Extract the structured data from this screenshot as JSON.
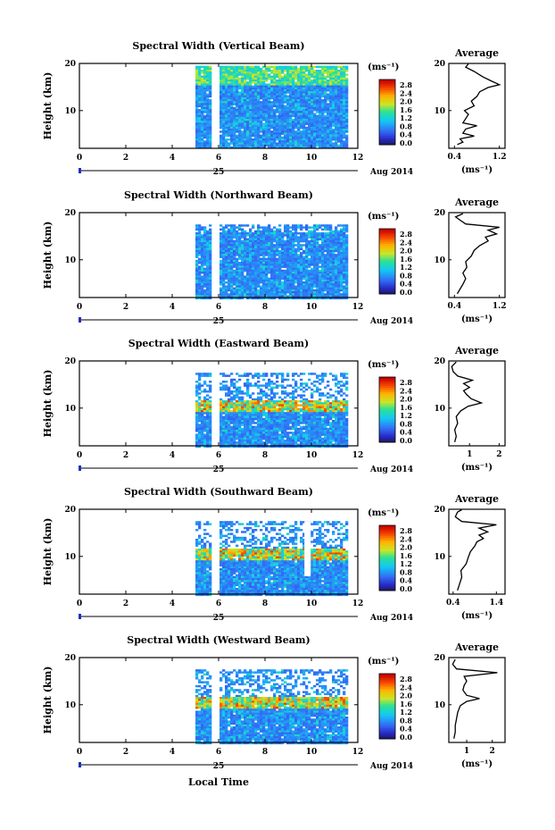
{
  "chart_data": {
    "type": "heatmap",
    "x_ticks": [
      "0",
      "2",
      "4",
      "6",
      "8",
      "10",
      "12"
    ],
    "xlim": [
      0,
      12
    ],
    "date_day": "25",
    "date_label": "Aug 2014",
    "xlabel": "Local Time",
    "ylabel": "Height (km)",
    "y_ticks": [
      "10",
      "20"
    ],
    "ylim": [
      2,
      20
    ],
    "cbar_unit": "(ms⁻¹)",
    "cbar_ticks": [
      "2.8",
      "2.4",
      "2.0",
      "1.6",
      "1.2",
      "0.8",
      "0.4",
      "0.0"
    ],
    "avg_title": "Average",
    "avg_unit": "(ms⁻¹)",
    "data_start": 5.0,
    "data_end": 11.5,
    "gap": [
      5.7,
      6.0
    ],
    "panels": [
      {
        "title": "Spectral Width (Vertical Beam)",
        "avg_ticks": [
          "0.4",
          "1.2"
        ],
        "avg_xlim": [
          0.3,
          1.3
        ],
        "avg_profile": [
          [
            0.45,
            2.8
          ],
          [
            0.55,
            3.3
          ],
          [
            0.5,
            4
          ],
          [
            0.75,
            4.6
          ],
          [
            0.55,
            5.2
          ],
          [
            0.6,
            6.1
          ],
          [
            0.8,
            6.8
          ],
          [
            0.55,
            7.4
          ],
          [
            0.6,
            8.3
          ],
          [
            0.65,
            9.2
          ],
          [
            0.58,
            10
          ],
          [
            0.75,
            11
          ],
          [
            0.7,
            12
          ],
          [
            0.8,
            13
          ],
          [
            0.85,
            14
          ],
          [
            1.0,
            14.9
          ],
          [
            1.2,
            15.5
          ],
          [
            1.05,
            16.3
          ],
          [
            0.9,
            17.2
          ],
          [
            0.75,
            18.3
          ],
          [
            0.6,
            19.2
          ],
          [
            0.65,
            19.9
          ]
        ],
        "notes": []
      },
      {
        "title": "Spectral Width (Northward Beam)",
        "avg_ticks": [
          "0.4",
          "1.2"
        ],
        "avg_xlim": [
          0.3,
          1.3
        ],
        "avg_profile": [
          [
            0.45,
            2.8
          ],
          [
            0.5,
            3.8
          ],
          [
            0.55,
            4.8
          ],
          [
            0.6,
            6
          ],
          [
            0.55,
            7.2
          ],
          [
            0.62,
            8.4
          ],
          [
            0.6,
            9.6
          ],
          [
            0.7,
            10.8
          ],
          [
            0.75,
            12
          ],
          [
            0.85,
            13
          ],
          [
            1.0,
            14
          ],
          [
            0.95,
            14.8
          ],
          [
            1.15,
            15.5
          ],
          [
            1.0,
            16.3
          ],
          [
            1.2,
            16.9
          ],
          [
            0.6,
            17.6
          ],
          [
            0.5,
            18.4
          ],
          [
            0.42,
            19.1
          ],
          [
            0.55,
            19.8
          ]
        ],
        "notes": []
      },
      {
        "title": "Spectral Width (Eastward Beam)",
        "avg_ticks": [
          "1",
          "2"
        ],
        "avg_xlim": [
          0.3,
          2.2
        ],
        "avg_profile": [
          [
            0.5,
            2.8
          ],
          [
            0.55,
            4
          ],
          [
            0.5,
            5.4
          ],
          [
            0.6,
            6.8
          ],
          [
            0.55,
            8.2
          ],
          [
            0.7,
            9.4
          ],
          [
            0.95,
            10.4
          ],
          [
            1.4,
            11.1
          ],
          [
            1.05,
            12
          ],
          [
            0.9,
            12.9
          ],
          [
            0.8,
            13.7
          ],
          [
            1.0,
            14.4
          ],
          [
            0.8,
            15.2
          ],
          [
            1.1,
            15.9
          ],
          [
            0.6,
            16.8
          ],
          [
            0.45,
            17.7
          ],
          [
            0.4,
            18.8
          ],
          [
            0.55,
            19.8
          ]
        ],
        "notes": []
      },
      {
        "title": "Spectral Width (Southward Beam)",
        "avg_ticks": [
          "0.4",
          "1.4"
        ],
        "avg_xlim": [
          0.3,
          1.6
        ],
        "avg_profile": [
          [
            0.5,
            2.8
          ],
          [
            0.55,
            4.2
          ],
          [
            0.6,
            5.6
          ],
          [
            0.58,
            7
          ],
          [
            0.7,
            8.4
          ],
          [
            0.75,
            9.8
          ],
          [
            0.8,
            11
          ],
          [
            0.9,
            12.2
          ],
          [
            0.95,
            13.1
          ],
          [
            1.1,
            13.8
          ],
          [
            1.0,
            14.5
          ],
          [
            1.2,
            15.2
          ],
          [
            1.0,
            16
          ],
          [
            1.4,
            16.7
          ],
          [
            0.6,
            17.4
          ],
          [
            0.45,
            18.4
          ],
          [
            0.5,
            19.4
          ],
          [
            0.6,
            19.9
          ]
        ],
        "notes": []
      },
      {
        "title": "Spectral Width (Westward Beam)",
        "avg_ticks": [
          "1",
          "2"
        ],
        "avg_xlim": [
          0.3,
          2.5
        ],
        "avg_profile": [
          [
            0.5,
            2.8
          ],
          [
            0.55,
            4.2
          ],
          [
            0.55,
            5.6
          ],
          [
            0.6,
            7
          ],
          [
            0.65,
            8.4
          ],
          [
            0.75,
            9.8
          ],
          [
            1.0,
            10.7
          ],
          [
            1.5,
            11.3
          ],
          [
            1.0,
            12
          ],
          [
            0.85,
            13.1
          ],
          [
            0.9,
            14.1
          ],
          [
            1.0,
            15
          ],
          [
            0.9,
            16
          ],
          [
            2.2,
            16.8
          ],
          [
            0.6,
            17.6
          ],
          [
            0.45,
            18.6
          ],
          [
            0.55,
            19.6
          ]
        ],
        "notes": []
      }
    ]
  }
}
